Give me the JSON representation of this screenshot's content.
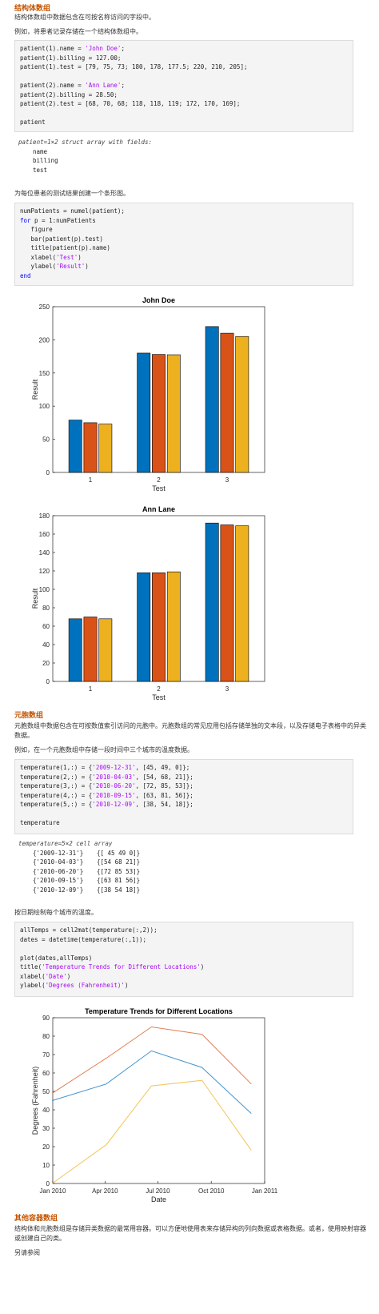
{
  "sec1": {
    "title": "结构体数组",
    "desc": "结构体数组中数据包含在可按名称访问的字段中。",
    "example": "例如，将患者记录存储在一个结构体数组中。",
    "code": [
      [
        {
          "t": "patient(1).name = ",
          "c": ""
        },
        {
          "t": "'John Doe'",
          "c": "st"
        },
        {
          "t": ";",
          "c": ""
        }
      ],
      [
        {
          "t": "patient(1).billing = 127.00;",
          "c": ""
        }
      ],
      [
        {
          "t": "patient(1).test = [79, 75, 73; 180, 178, 177.5; 220, 210, 205];",
          "c": ""
        }
      ],
      [
        {
          "t": "",
          "c": ""
        }
      ],
      [
        {
          "t": "patient(2).name = ",
          "c": ""
        },
        {
          "t": "'Ann Lane'",
          "c": "st"
        },
        {
          "t": ";",
          "c": ""
        }
      ],
      [
        {
          "t": "patient(2).billing = 28.50;",
          "c": ""
        }
      ],
      [
        {
          "t": "patient(2).test = [68, 70, 68; 118, 118, 119; 172, 170, 169];",
          "c": ""
        }
      ],
      [
        {
          "t": "",
          "c": ""
        }
      ],
      [
        {
          "t": "patient",
          "c": ""
        }
      ]
    ],
    "output_header": "patient=1×2 struct array with fields:",
    "output_fields": [
      "name",
      "billing",
      "test"
    ],
    "bar_desc": "为每位患者的测试结果创建一个条形图。",
    "code2": [
      [
        {
          "t": "numPatients = numel(patient);",
          "c": ""
        }
      ],
      [
        {
          "t": "for",
          "c": "kw"
        },
        {
          "t": " p = 1:numPatients",
          "c": ""
        }
      ],
      [
        {
          "t": "   figure",
          "c": ""
        }
      ],
      [
        {
          "t": "   bar(patient(p).test)",
          "c": ""
        }
      ],
      [
        {
          "t": "   title(patient(p).name)",
          "c": ""
        }
      ],
      [
        {
          "t": "   xlabel(",
          "c": ""
        },
        {
          "t": "'Test'",
          "c": "st"
        },
        {
          "t": ")",
          "c": ""
        }
      ],
      [
        {
          "t": "   ylabel(",
          "c": ""
        },
        {
          "t": "'Result'",
          "c": "st"
        },
        {
          "t": ")",
          "c": ""
        }
      ],
      [
        {
          "t": "end",
          "c": "kw"
        }
      ]
    ]
  },
  "sec2": {
    "title": "元胞数组",
    "desc": "元胞数组中数据包含在可按数值索引访问的元胞中。元胞数组的常见应用包括存储单独的文本段，以及存储电子表格中的异类数据。",
    "example": "例如，在一个元胞数组中存储一段时间中三个城市的温度数据。",
    "code": [
      [
        {
          "t": "temperature(1,:) = {",
          "c": ""
        },
        {
          "t": "'2009-12-31'",
          "c": "st"
        },
        {
          "t": ", [45, 49, 0]};",
          "c": ""
        }
      ],
      [
        {
          "t": "temperature(2,:) = {",
          "c": ""
        },
        {
          "t": "'2010-04-03'",
          "c": "st"
        },
        {
          "t": ", [54, 68, 21]};",
          "c": ""
        }
      ],
      [
        {
          "t": "temperature(3,:) = {",
          "c": ""
        },
        {
          "t": "'2010-06-20'",
          "c": "st"
        },
        {
          "t": ", [72, 85, 53]};",
          "c": ""
        }
      ],
      [
        {
          "t": "temperature(4,:) = {",
          "c": ""
        },
        {
          "t": "'2010-09-15'",
          "c": "st"
        },
        {
          "t": ", [63, 81, 56]};",
          "c": ""
        }
      ],
      [
        {
          "t": "temperature(5,:) = {",
          "c": ""
        },
        {
          "t": "'2010-12-09'",
          "c": "st"
        },
        {
          "t": ", [38, 54, 18]};",
          "c": ""
        }
      ],
      [
        {
          "t": "",
          "c": ""
        }
      ],
      [
        {
          "t": "temperature",
          "c": ""
        }
      ]
    ],
    "output_header": "temperature=5×2 cell array",
    "output_rows": [
      [
        "{'2009-12-31'}",
        "{[ 45 49 0]}"
      ],
      [
        "{'2010-04-03'}",
        "{[54 68 21]}"
      ],
      [
        "{'2010-06-20'}",
        "{[72 85 53]}"
      ],
      [
        "{'2010-09-15'}",
        "{[63 81 56]}"
      ],
      [
        "{'2010-12-09'}",
        "{[38 54 18]}"
      ]
    ],
    "plot_desc": "按日期绘制每个城市的温度。",
    "code2": [
      [
        {
          "t": "allTemps = cell2mat(temperature(:,2));",
          "c": ""
        }
      ],
      [
        {
          "t": "dates = datetime(temperature(:,1));",
          "c": ""
        }
      ],
      [
        {
          "t": "",
          "c": ""
        }
      ],
      [
        {
          "t": "plot(dates,allTemps)",
          "c": ""
        }
      ],
      [
        {
          "t": "title(",
          "c": ""
        },
        {
          "t": "'Temperature Trends for Different Locations'",
          "c": "st"
        },
        {
          "t": ")",
          "c": ""
        }
      ],
      [
        {
          "t": "xlabel(",
          "c": ""
        },
        {
          "t": "'Date'",
          "c": "st"
        },
        {
          "t": ")",
          "c": ""
        }
      ],
      [
        {
          "t": "ylabel(",
          "c": ""
        },
        {
          "t": "'Degrees (Fahrenheit)'",
          "c": "st"
        },
        {
          "t": ")",
          "c": ""
        }
      ]
    ]
  },
  "sec3": {
    "title": "其他容器数组",
    "desc": "结构体和元胞数组是存储异类数据的最常用容器。可以方便地使用表来存储异构的列向数据或表格数据。或者，使用映射容器或创建自己的类。",
    "more": "另请参阅"
  },
  "chart_data": [
    {
      "type": "bar",
      "title": "John Doe",
      "xlabel": "Test",
      "ylabel": "Result",
      "categories": [
        "1",
        "2",
        "3"
      ],
      "series": [
        {
          "values": [
            79,
            180,
            220
          ]
        },
        {
          "values": [
            75,
            178,
            210
          ]
        },
        {
          "values": [
            73,
            177.5,
            205
          ]
        }
      ],
      "ylim": [
        0,
        250
      ],
      "yticks": [
        0,
        50,
        100,
        150,
        200,
        250
      ],
      "colors": [
        "#0072bd",
        "#d95319",
        "#edb120"
      ]
    },
    {
      "type": "bar",
      "title": "Ann Lane",
      "xlabel": "Test",
      "ylabel": "Result",
      "categories": [
        "1",
        "2",
        "3"
      ],
      "series": [
        {
          "values": [
            68,
            118,
            172
          ]
        },
        {
          "values": [
            70,
            118,
            170
          ]
        },
        {
          "values": [
            68,
            119,
            169
          ]
        }
      ],
      "ylim": [
        0,
        180
      ],
      "yticks": [
        0,
        20,
        40,
        60,
        80,
        100,
        120,
        140,
        160,
        180
      ],
      "colors": [
        "#0072bd",
        "#d95319",
        "#edb120"
      ]
    },
    {
      "type": "line",
      "title": "Temperature Trends for Different Locations",
      "xlabel": "Date",
      "ylabel": "Degrees (Fahrenheit)",
      "x": [
        "2009-12-31",
        "2010-04-03",
        "2010-06-20",
        "2010-09-15",
        "2010-12-09"
      ],
      "series": [
        {
          "values": [
            45,
            54,
            72,
            63,
            38
          ]
        },
        {
          "values": [
            49,
            68,
            85,
            81,
            54
          ]
        },
        {
          "values": [
            0,
            21,
            53,
            56,
            18
          ]
        }
      ],
      "xlim": [
        "2010-01-01",
        "2011-01-01"
      ],
      "xticks": [
        {
          "date": "2010-01-01",
          "label": "Jan 2010"
        },
        {
          "date": "2010-04-01",
          "label": "Apr 2010"
        },
        {
          "date": "2010-07-01",
          "label": "Jul 2010"
        },
        {
          "date": "2010-10-01",
          "label": "Oct 2010"
        },
        {
          "date": "2011-01-01",
          "label": "Jan 2011"
        }
      ],
      "ylim": [
        0,
        90
      ],
      "yticks": [
        0,
        10,
        20,
        30,
        40,
        50,
        60,
        70,
        80,
        90
      ],
      "colors": [
        "#0072bd",
        "#d95319",
        "#edb120"
      ]
    }
  ]
}
